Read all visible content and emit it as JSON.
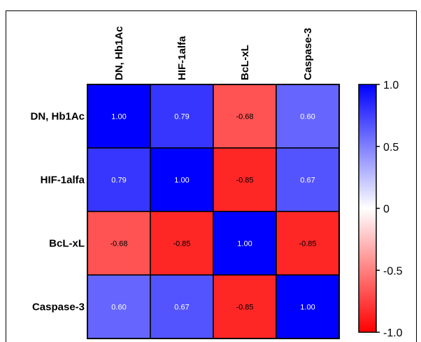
{
  "chart_data": {
    "type": "heatmap",
    "title": "",
    "columns": [
      "DN, Hb1Ac",
      "HIF-1alfa",
      "BcL-xL",
      "Caspase-3"
    ],
    "rows": [
      "DN, Hb1Ac",
      "HIF-1alfa",
      "BcL-xL",
      "Caspase-3"
    ],
    "values": [
      [
        1.0,
        0.79,
        -0.68,
        0.6
      ],
      [
        0.79,
        1.0,
        -0.85,
        0.67
      ],
      [
        -0.68,
        -0.85,
        1.0,
        -0.85
      ],
      [
        0.6,
        0.67,
        -0.85,
        1.0
      ]
    ],
    "value_labels": [
      [
        "1.00",
        "0.79",
        "-0.68",
        "0.60"
      ],
      [
        "0.79",
        "1.00",
        "-0.85",
        "0.67"
      ],
      [
        "-0.68",
        "-0.85",
        "1.00",
        "-0.85"
      ],
      [
        "0.60",
        "0.67",
        "-0.85",
        "1.00"
      ]
    ],
    "colorbar": {
      "range": [
        -1.0,
        1.0
      ],
      "ticks": [
        1.0,
        0.5,
        0,
        -0.5,
        -1.0
      ],
      "tick_labels": [
        "1.0",
        "0.5",
        "0",
        "-0.5",
        "-1.0"
      ],
      "colors": {
        "positive": "#0000ff",
        "zero": "#ffffff",
        "negative": "#ff0000"
      }
    }
  }
}
